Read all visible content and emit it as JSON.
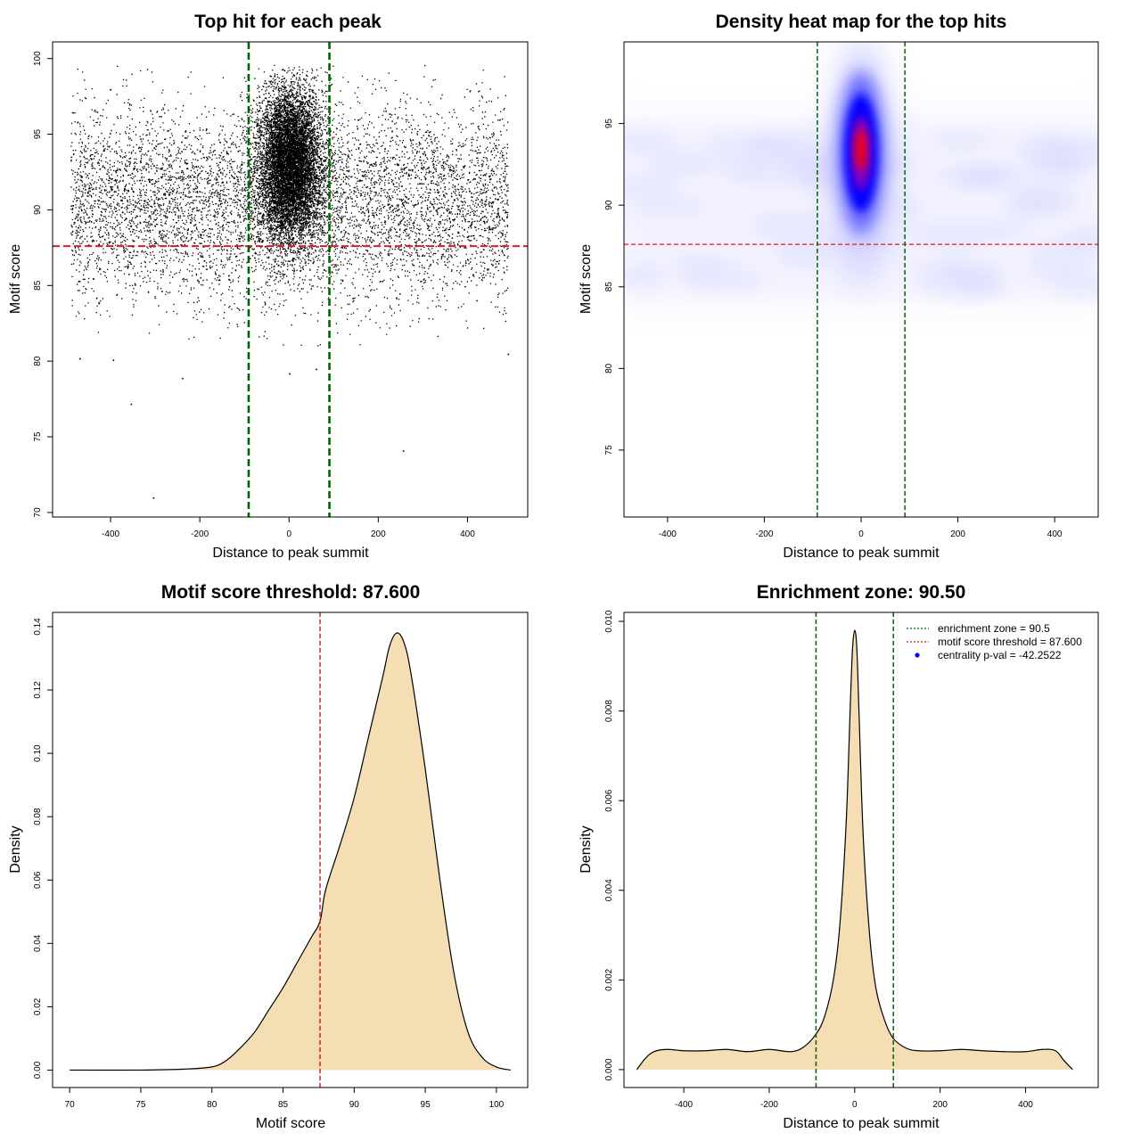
{
  "chart_data": [
    {
      "id": "scatter",
      "type": "scatter",
      "title": "Top hit for each peak",
      "xlabel": "Distance to peak summit",
      "ylabel": "Motif score",
      "xlim": [
        -530,
        535
      ],
      "ylim": [
        69.7,
        101.1
      ],
      "xticks": [
        -400,
        -200,
        0,
        200,
        400
      ],
      "yticks": [
        70,
        75,
        80,
        85,
        90,
        95,
        100
      ],
      "threshold_y": 87.6,
      "zone_x": [
        -90.5,
        90.5
      ],
      "point_summary": {
        "background_x_range": [
          -490,
          490
        ],
        "background_y_center": 90.5,
        "background_y_spread": 3.2,
        "central_x_spread": 35,
        "central_y_center": 93,
        "central_y_spread": 2.5
      },
      "outliers": [
        {
          "x": -355,
          "y": 77.2
        },
        {
          "x": -240,
          "y": 78.9
        },
        {
          "x": -305,
          "y": 71.0
        },
        {
          "x": 255,
          "y": 74.1
        },
        {
          "x": 0,
          "y": 79.2
        },
        {
          "x": -470,
          "y": 80.2
        },
        {
          "x": -395,
          "y": 80.1
        },
        {
          "x": 490,
          "y": 80.5
        },
        {
          "x": 60,
          "y": 79.5
        }
      ],
      "colors": {
        "points": "#000000",
        "threshold": "#e41a1c",
        "zone": "#006400"
      }
    },
    {
      "id": "heatmap",
      "type": "heatmap",
      "title": "Density heat map for the top hits",
      "xlabel": "Distance to peak summit",
      "ylabel": "Motif score",
      "xlim": [
        -490,
        490
      ],
      "ylim": [
        70.9,
        100.0
      ],
      "xticks": [
        -400,
        -200,
        0,
        200,
        400
      ],
      "yticks": [
        75,
        80,
        85,
        90,
        95
      ],
      "threshold_y": 87.6,
      "zone_x": [
        -90.5,
        90.5
      ],
      "density_peak": {
        "x": 0,
        "y": 93.2
      },
      "colors": {
        "low": "#ffffff",
        "mid": "#0000ff",
        "high": "#ff0000",
        "threshold": "#e41a1c",
        "zone": "#006400"
      }
    },
    {
      "id": "score-density",
      "type": "area",
      "title": "Motif score threshold: 87.600",
      "xlabel": "Motif score",
      "ylabel": "Density",
      "xlim": [
        68.8,
        102.2
      ],
      "ylim": [
        -0.0055,
        0.1445
      ],
      "xticks": [
        70,
        75,
        80,
        85,
        90,
        95,
        100
      ],
      "yticks": [
        0.0,
        0.02,
        0.04,
        0.06,
        0.08,
        0.1,
        0.12,
        0.14
      ],
      "ytick_labels": [
        "0.00",
        "0.02",
        "0.04",
        "0.06",
        "0.08",
        "0.10",
        "0.12",
        "0.14"
      ],
      "threshold_x": 87.6,
      "x": [
        70,
        75,
        78,
        80,
        81,
        82,
        83,
        84,
        85,
        86,
        87,
        87.6,
        88,
        89,
        90,
        91,
        92,
        92.5,
        93,
        93.5,
        94,
        95,
        96,
        97,
        98,
        99,
        100,
        101
      ],
      "values": [
        0.0,
        0.0,
        0.0003,
        0.001,
        0.003,
        0.007,
        0.012,
        0.019,
        0.026,
        0.034,
        0.042,
        0.047,
        0.057,
        0.071,
        0.086,
        0.105,
        0.124,
        0.134,
        0.138,
        0.135,
        0.125,
        0.095,
        0.061,
        0.031,
        0.012,
        0.004,
        0.001,
        0.0
      ],
      "colors": {
        "fill": "#f5deb3",
        "line": "#000000",
        "threshold": "#cc0000"
      }
    },
    {
      "id": "distance-density",
      "type": "area",
      "title": "Enrichment zone: 90.50",
      "xlabel": "Distance to peak summit",
      "ylabel": "Density",
      "xlim": [
        -540,
        570
      ],
      "ylim": [
        -0.0004,
        0.0102
      ],
      "xticks": [
        -400,
        -200,
        0,
        200,
        400
      ],
      "yticks": [
        0.0,
        0.002,
        0.004,
        0.006,
        0.008,
        0.01
      ],
      "ytick_labels": [
        "0.000",
        "0.002",
        "0.004",
        "0.006",
        "0.008",
        "0.010"
      ],
      "zone_x": [
        -90.5,
        90.5
      ],
      "x": [
        -510,
        -490,
        -470,
        -440,
        -400,
        -350,
        -300,
        -250,
        -200,
        -150,
        -120,
        -90,
        -70,
        -50,
        -35,
        -20,
        -10,
        -5,
        0,
        5,
        10,
        20,
        35,
        50,
        70,
        90,
        120,
        150,
        200,
        250,
        300,
        350,
        400,
        440,
        470,
        490,
        510
      ],
      "values": [
        0.0,
        0.00025,
        0.0004,
        0.00045,
        0.00042,
        0.00042,
        0.00045,
        0.0004,
        0.00045,
        0.0004,
        0.0005,
        0.0008,
        0.0012,
        0.002,
        0.0032,
        0.0055,
        0.0082,
        0.0094,
        0.0098,
        0.0094,
        0.008,
        0.0052,
        0.003,
        0.0018,
        0.0011,
        0.0007,
        0.00048,
        0.00042,
        0.00042,
        0.00045,
        0.00042,
        0.0004,
        0.0004,
        0.00045,
        0.00042,
        0.0002,
        0.0
      ],
      "legend": [
        {
          "label": "enrichment zone = 90.5",
          "style": "dotted-line",
          "color": "#006400"
        },
        {
          "label": "motif score threshold = 87.600",
          "style": "dotted-line",
          "color": "#e41a1c"
        },
        {
          "label": "centrality p-val = -42.2522",
          "style": "dot",
          "color": "#0000ff"
        }
      ],
      "legend_position": "top-right",
      "colors": {
        "fill": "#f5deb3",
        "line": "#000000",
        "zone": "#006400"
      }
    }
  ]
}
